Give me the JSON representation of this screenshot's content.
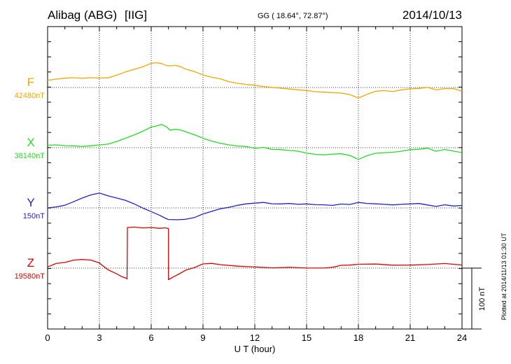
{
  "header": {
    "station": "Alibag (ABG)",
    "network": "[IIG]",
    "coords": "GG ( 18.64°,  72.87°)",
    "date": "2014/10/13"
  },
  "footer": {
    "plotted": "Plotted at 2014/11/13 01:30 UT"
  },
  "chart_data": {
    "type": "line",
    "xlabel": "U T (hour)",
    "xlim": [
      0,
      24
    ],
    "xticks": [
      0,
      3,
      6,
      9,
      12,
      15,
      18,
      21,
      24
    ],
    "grid": true,
    "scale_bar": {
      "label": "100 nT",
      "value_nT": 100
    },
    "series": [
      {
        "name": "F",
        "baseline_label": "42480nT",
        "baseline_nT": 42480,
        "color": "#f0a800",
        "x": [
          0,
          0.5,
          1,
          1.5,
          2,
          2.5,
          3,
          3.5,
          4,
          4.5,
          5,
          5.5,
          6,
          6.3,
          6.6,
          6.9,
          7.1,
          7.4,
          7.7,
          8,
          8.5,
          9,
          9.5,
          10,
          10.5,
          11,
          11.5,
          12,
          12.5,
          13,
          13.5,
          14,
          14.5,
          15,
          15.5,
          16,
          16.5,
          17,
          17.5,
          18,
          18.5,
          19,
          19.5,
          20,
          20.5,
          21,
          21.5,
          22,
          22.5,
          23,
          23.5,
          24
        ],
        "y": [
          12,
          14,
          16,
          17,
          16,
          17,
          16,
          16,
          20,
          25,
          29,
          33,
          39,
          40,
          39,
          36,
          36,
          37,
          35,
          31,
          27,
          21,
          17,
          14,
          9,
          6,
          4,
          3,
          1,
          0,
          -1,
          -2,
          -3,
          -4,
          -6,
          -7,
          -8,
          -9,
          -12,
          -18,
          -12,
          -7,
          -6,
          -7,
          -4,
          -2,
          -1,
          1,
          -3,
          -1,
          -1,
          -6
        ]
      },
      {
        "name": "X",
        "baseline_label": "38140nT",
        "baseline_nT": 38140,
        "color": "#22dd22",
        "x": [
          0,
          0.5,
          1,
          1.5,
          2,
          2.5,
          3,
          3.5,
          4,
          4.5,
          5,
          5.5,
          6,
          6.3,
          6.6,
          6.9,
          7.1,
          7.4,
          7.7,
          8,
          8.5,
          9,
          9.5,
          10,
          10.5,
          11,
          11.5,
          12,
          12.5,
          13,
          13.5,
          14,
          14.5,
          15,
          15.5,
          16,
          16.5,
          17,
          17.5,
          18,
          18.5,
          19,
          19.5,
          20,
          20.5,
          21,
          21.5,
          22,
          22.5,
          23,
          23.5,
          24
        ],
        "y": [
          4,
          5,
          4,
          4,
          3,
          4,
          5,
          6,
          10,
          15,
          20,
          26,
          33,
          35,
          38,
          34,
          29,
          31,
          30,
          27,
          22,
          16,
          11,
          7,
          4,
          2,
          1,
          -2,
          0,
          -3,
          -3,
          -4,
          -5,
          -8,
          -10,
          -11,
          -10,
          -10,
          -13,
          -20,
          -14,
          -10,
          -9,
          -8,
          -6,
          -3,
          -2,
          0,
          -5,
          -2,
          -5,
          -8
        ]
      },
      {
        "name": "Y",
        "baseline_label": "150nT",
        "baseline_nT": 150,
        "color": "#2222cc",
        "x": [
          0,
          0.5,
          1,
          1.5,
          2,
          2.5,
          3,
          3.5,
          4,
          4.5,
          5,
          5.5,
          6,
          6.5,
          6.8,
          7,
          7.5,
          8,
          8.5,
          9,
          9.5,
          10,
          10.5,
          11,
          11.5,
          12,
          12.5,
          13,
          13.5,
          14,
          14.5,
          15,
          15.5,
          16,
          16.5,
          17,
          17.5,
          18,
          18.5,
          19,
          19.5,
          20,
          20.5,
          21,
          21.5,
          22,
          22.5,
          23,
          23.5,
          24
        ],
        "y": [
          0,
          2,
          5,
          11,
          17,
          22,
          25,
          20,
          16,
          12,
          6,
          -1,
          -7,
          -13,
          -17,
          -19,
          -19,
          -18,
          -15,
          -9,
          -5,
          -1,
          1,
          4,
          6,
          7,
          8,
          6,
          6,
          7,
          6,
          7,
          6,
          6,
          5,
          7,
          6,
          9,
          7,
          6,
          5,
          4,
          5,
          6,
          7,
          5,
          3,
          6,
          4,
          4
        ]
      },
      {
        "name": "Z",
        "baseline_label": "19580nT",
        "baseline_nT": 19580,
        "color": "#dd0000",
        "x": [
          0,
          0.5,
          1,
          1.5,
          2,
          2.5,
          3,
          3.2,
          3.5,
          4,
          4.3,
          4.6,
          4.6,
          4.62,
          5,
          5.5,
          6,
          6.5,
          6.8,
          6.98,
          7.0,
          7.0,
          7.3,
          7.6,
          8,
          8.5,
          9,
          9.5,
          10,
          11,
          12,
          13,
          14,
          15,
          16,
          16.5,
          17,
          17.5,
          18,
          19,
          20,
          21,
          22,
          23,
          24
        ],
        "y": [
          2,
          8,
          10,
          14,
          15,
          14,
          9,
          4,
          -3,
          -10,
          -15,
          -18,
          -18,
          66,
          67,
          66,
          67,
          66,
          67,
          66,
          65,
          -19,
          -14,
          -10,
          -4,
          0,
          6,
          7,
          5,
          3,
          2,
          1,
          2,
          1,
          1,
          2,
          5,
          5,
          6,
          6,
          4,
          4,
          5,
          7,
          5
        ]
      }
    ]
  }
}
